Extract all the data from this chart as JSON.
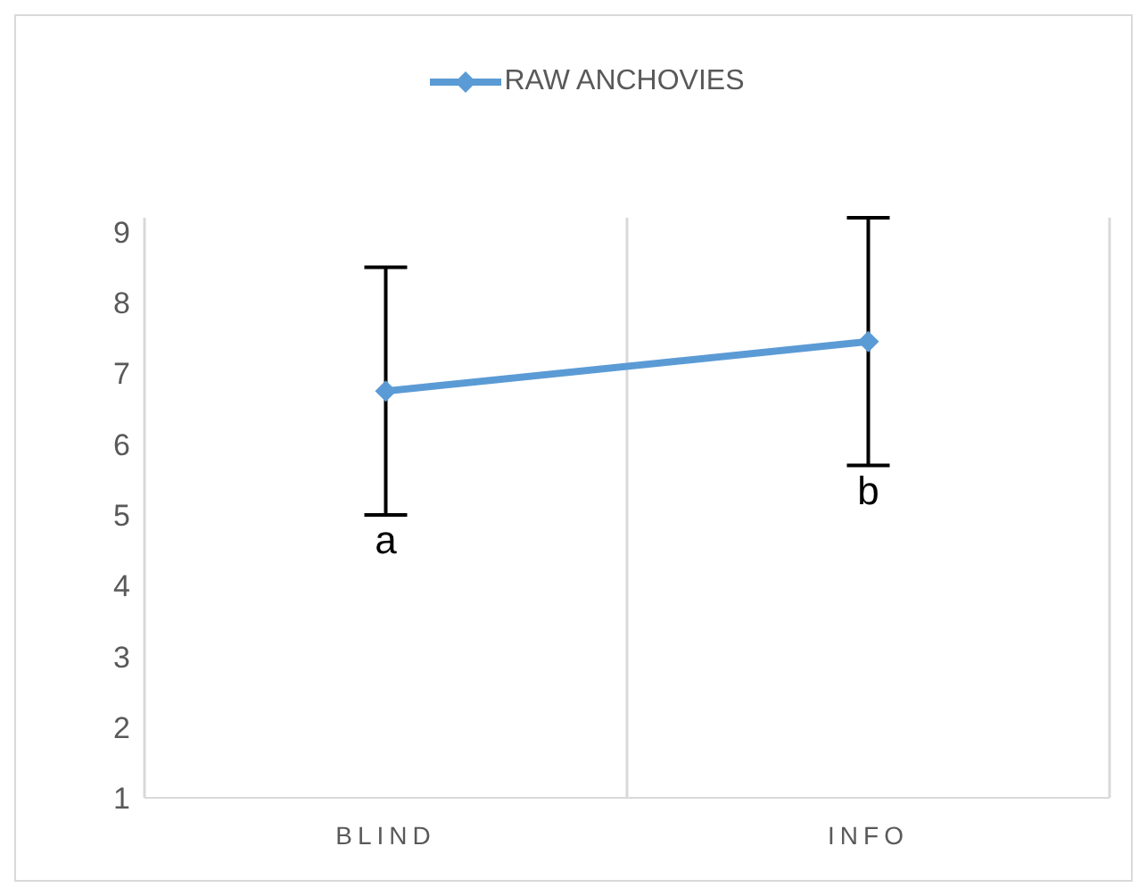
{
  "chart_data": {
    "type": "line",
    "categories": [
      "BLIND",
      "INFO"
    ],
    "series": [
      {
        "name": "RAW ANCHOVIES",
        "color": "#5b9bd5",
        "values": [
          6.75,
          7.45
        ],
        "errors": [
          [
            5.0,
            8.5
          ],
          [
            5.7,
            9.2
          ]
        ]
      }
    ],
    "ylim": [
      1,
      9.2
    ],
    "yticks": [
      1,
      2,
      3,
      4,
      5,
      6,
      7,
      8,
      9
    ],
    "grid": "x",
    "legend": "top",
    "marker": "diamond",
    "line_style": "solid",
    "annotations": [
      "a",
      "b"
    ]
  }
}
